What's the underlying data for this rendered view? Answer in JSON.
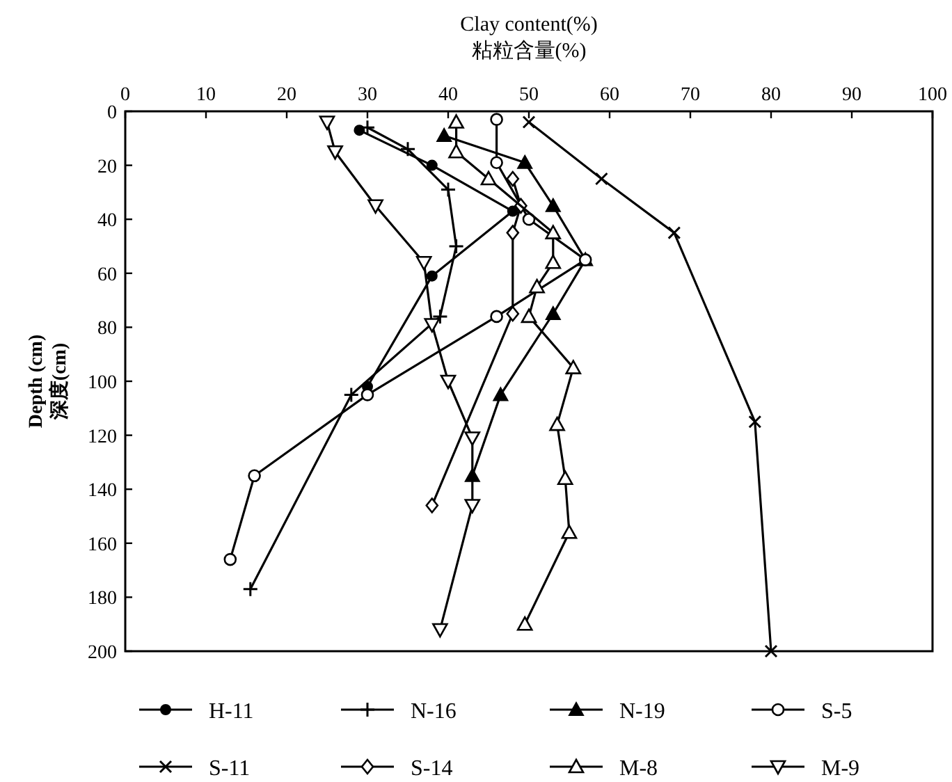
{
  "chart_data": {
    "type": "line",
    "xlabel": "Clay content(%)\n粘粒含量(%)",
    "ylabel": "Depth (cm)\n深度(cm)",
    "xlim": [
      0,
      100
    ],
    "xticks": [
      0,
      10,
      20,
      30,
      40,
      50,
      60,
      70,
      80,
      90,
      100
    ],
    "ylim": [
      200,
      0
    ],
    "yticks": [
      0,
      20,
      40,
      60,
      80,
      100,
      120,
      140,
      160,
      180,
      200
    ],
    "grid": false,
    "legend": "bottom",
    "series": [
      {
        "name": "H-11",
        "color": "#000000",
        "marker": "circle_filled",
        "x": [
          29,
          38,
          48,
          38,
          30
        ],
        "values": [
          7,
          20,
          37,
          61,
          102
        ]
      },
      {
        "name": "N-16",
        "color": "#000000",
        "marker": "plus",
        "x": [
          30,
          35,
          40,
          41,
          39,
          28,
          15.5
        ],
        "values": [
          6,
          14,
          29,
          50,
          76,
          105,
          177
        ]
      },
      {
        "name": "N-19",
        "color": "#000000",
        "marker": "triangle_filled",
        "x": [
          39.5,
          49.5,
          53,
          57,
          53,
          46.5,
          43
        ],
        "values": [
          9,
          19,
          35,
          55,
          75,
          105,
          135
        ]
      },
      {
        "name": "S-5",
        "color": "#000000",
        "marker": "circle",
        "x": [
          46,
          46,
          50,
          57,
          46,
          30,
          16,
          13
        ],
        "values": [
          3,
          19,
          40,
          55,
          76,
          105,
          135,
          166
        ]
      },
      {
        "name": "S-11",
        "color": "#000000",
        "marker": "cross",
        "x": [
          50,
          59,
          68,
          78,
          80
        ],
        "values": [
          4,
          25,
          45,
          115,
          200
        ]
      },
      {
        "name": "S-14",
        "color": "#000000",
        "marker": "diamond",
        "x": [
          48,
          49,
          48,
          48,
          38
        ],
        "values": [
          25,
          35,
          45,
          75,
          146
        ]
      },
      {
        "name": "M-8",
        "color": "#000000",
        "marker": "triangle",
        "x": [
          41,
          41,
          45,
          53,
          53,
          51,
          50,
          55.5,
          53.5,
          54.5,
          55,
          49.5
        ],
        "values": [
          4,
          15,
          25,
          45,
          56,
          65,
          76,
          95,
          116,
          136,
          156,
          190
        ]
      },
      {
        "name": "M-9",
        "color": "#000000",
        "marker": "triangle_down",
        "x": [
          25,
          26,
          31,
          37,
          38,
          40,
          43,
          43,
          39
        ],
        "values": [
          4,
          15,
          35,
          56,
          79,
          100,
          121,
          146,
          192
        ]
      }
    ]
  }
}
